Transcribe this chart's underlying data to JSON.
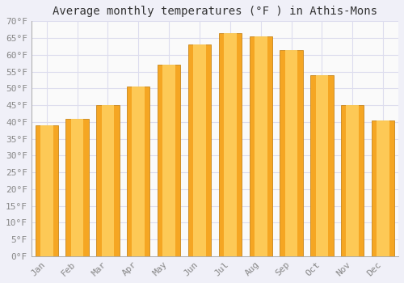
{
  "title": "Average monthly temperatures (°F ) in Athis-Mons",
  "months": [
    "Jan",
    "Feb",
    "Mar",
    "Apr",
    "May",
    "Jun",
    "Jul",
    "Aug",
    "Sep",
    "Oct",
    "Nov",
    "Dec"
  ],
  "values": [
    39,
    41,
    45,
    50.5,
    57,
    63,
    66.5,
    65.5,
    61.5,
    54,
    45,
    40.5
  ],
  "bar_color_edge": "#F5A623",
  "bar_color_center": "#FFD966",
  "background_color": "#F0F0F8",
  "plot_bg_color": "#FAFAFA",
  "grid_color": "#DDDDEE",
  "ylim": [
    0,
    70
  ],
  "yticks": [
    0,
    5,
    10,
    15,
    20,
    25,
    30,
    35,
    40,
    45,
    50,
    55,
    60,
    65,
    70
  ],
  "ylabel_suffix": "°F",
  "title_fontsize": 10,
  "tick_fontsize": 8,
  "font_family": "monospace",
  "tick_color": "#888888",
  "title_color": "#333333"
}
